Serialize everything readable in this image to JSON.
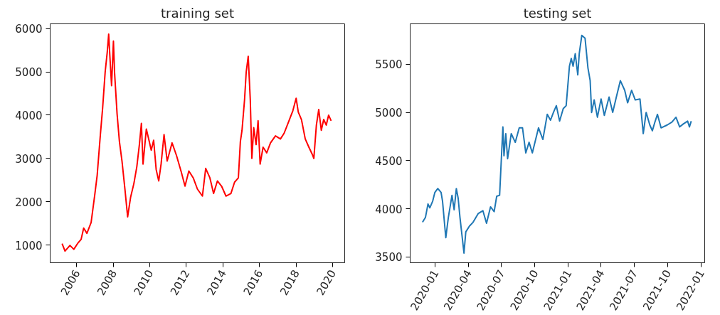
{
  "chart_data": [
    {
      "type": "line",
      "title": "training set",
      "xlim": [
        "2004-07-18",
        "2020-09-01"
      ],
      "ylim": [
        590,
        6110
      ],
      "xticks": [
        "2006",
        "2008",
        "2010",
        "2012",
        "2014",
        "2016",
        "2018",
        "2020"
      ],
      "yticks": [
        1000,
        2000,
        3000,
        4000,
        5000,
        6000
      ],
      "grid": false,
      "series": [
        {
          "color": "#ff0000",
          "x": [
            "2005-03-14",
            "2005-05-11",
            "2005-08-18",
            "2005-11-03",
            "2006-01-15",
            "2006-03-29",
            "2006-05-19",
            "2006-07-23",
            "2006-10-15",
            "2006-12-27",
            "2007-02-13",
            "2007-04-16",
            "2007-06-02",
            "2007-07-23",
            "2007-09-02",
            "2007-10-01",
            "2007-10-30",
            "2007-11-28",
            "2008-01-04",
            "2008-01-26",
            "2008-03-17",
            "2008-05-03",
            "2008-06-23",
            "2008-08-21",
            "2008-10-14",
            "2008-12-12",
            "2009-02-16",
            "2009-04-16",
            "2009-06-06",
            "2009-07-16",
            "2009-08-18",
            "2009-10-23",
            "2009-12-09",
            "2010-01-29",
            "2010-03-18",
            "2010-05-08",
            "2010-06-28",
            "2010-08-14",
            "2010-10-12",
            "2010-12-13",
            "2011-03-21",
            "2011-06-17",
            "2011-09-23",
            "2011-12-05",
            "2012-02-20",
            "2012-05-18",
            "2012-08-10",
            "2012-11-17",
            "2013-01-22",
            "2013-04-16",
            "2013-06-28",
            "2013-09-13",
            "2013-12-05",
            "2014-03-03",
            "2014-06-10",
            "2014-08-22",
            "2014-11-06",
            "2014-12-16",
            "2015-01-18",
            "2015-03-10",
            "2015-04-12",
            "2015-05-22",
            "2015-07-02",
            "2015-08-03",
            "2015-09-09",
            "2015-10-26",
            "2015-12-05",
            "2016-01-15",
            "2016-03-14",
            "2016-05-26",
            "2016-08-10",
            "2016-11-17",
            "2017-02-24",
            "2017-05-08",
            "2017-08-14",
            "2017-10-30",
            "2018-01-04",
            "2018-02-16",
            "2018-04-20",
            "2018-07-05",
            "2018-09-16",
            "2018-12-02",
            "2018-12-24",
            "2019-02-13",
            "2019-04-01",
            "2019-05-22",
            "2019-07-09",
            "2019-08-29",
            "2019-10-15",
            "2019-12-05"
          ],
          "values": [
            1030,
            860,
            990,
            900,
            1030,
            1130,
            1390,
            1270,
            1520,
            2160,
            2610,
            3520,
            4160,
            5000,
            5450,
            5870,
            5260,
            4680,
            5710,
            5000,
            4030,
            3390,
            2940,
            2290,
            1650,
            2100,
            2420,
            2810,
            3320,
            3810,
            2870,
            3680,
            3450,
            3190,
            3420,
            2740,
            2480,
            2870,
            3550,
            2940,
            3360,
            3070,
            2680,
            2360,
            2710,
            2550,
            2290,
            2130,
            2770,
            2550,
            2190,
            2480,
            2360,
            2130,
            2190,
            2450,
            2550,
            3390,
            3650,
            4360,
            5000,
            5360,
            4360,
            3000,
            3710,
            3320,
            3870,
            2870,
            3260,
            3130,
            3360,
            3520,
            3450,
            3580,
            3870,
            4100,
            4390,
            4070,
            3900,
            3450,
            3260,
            3070,
            3000,
            3770,
            4130,
            3650,
            3900,
            3770,
            4000,
            3870
          ]
        }
      ]
    },
    {
      "type": "line",
      "title": "testing set",
      "xlim": [
        "2019-10-24",
        "2022-01-11"
      ],
      "ylim": [
        3440,
        5920
      ],
      "xticks": [
        "2020-01",
        "2020-04",
        "2020-07",
        "2020-10",
        "2021-01",
        "2021-04",
        "2021-07",
        "2021-10",
        "2022-01"
      ],
      "yticks": [
        3500,
        4000,
        4500,
        5000,
        5500
      ],
      "grid": false,
      "series": [
        {
          "color": "#1f77b4",
          "x": [
            "2019-11-27",
            "2019-12-05",
            "2019-12-12",
            "2019-12-17",
            "2019-12-25",
            "2019-12-31",
            "2020-01-08",
            "2020-01-17",
            "2020-01-21",
            "2020-01-30",
            "2020-02-06",
            "2020-02-16",
            "2020-02-22",
            "2020-02-28",
            "2020-03-04",
            "2020-03-09",
            "2020-03-20",
            "2020-03-25",
            "2020-04-04",
            "2020-04-14",
            "2020-04-28",
            "2020-05-11",
            "2020-05-21",
            "2020-06-01",
            "2020-06-11",
            "2020-06-18",
            "2020-06-26",
            "2020-07-05",
            "2020-07-08",
            "2020-07-13",
            "2020-07-18",
            "2020-07-28",
            "2020-08-08",
            "2020-08-19",
            "2020-08-28",
            "2020-09-06",
            "2020-09-15",
            "2020-09-24",
            "2020-10-11",
            "2020-10-23",
            "2020-11-04",
            "2020-11-13",
            "2020-11-21",
            "2020-11-29",
            "2020-12-08",
            "2020-12-18",
            "2020-12-26",
            "2021-01-04",
            "2021-01-09",
            "2021-01-14",
            "2021-01-20",
            "2021-01-27",
            "2021-01-31",
            "2021-02-07",
            "2021-02-16",
            "2021-02-24",
            "2021-03-02",
            "2021-03-06",
            "2021-03-13",
            "2021-03-22",
            "2021-04-01",
            "2021-04-10",
            "2021-04-23",
            "2021-05-03",
            "2021-05-13",
            "2021-05-24",
            "2021-06-05",
            "2021-06-13",
            "2021-06-24",
            "2021-07-04",
            "2021-07-17",
            "2021-07-26",
            "2021-08-03",
            "2021-08-13",
            "2021-08-20",
            "2021-08-27",
            "2021-09-03",
            "2021-09-13",
            "2021-09-30",
            "2021-10-13",
            "2021-10-24",
            "2021-11-03",
            "2021-11-13",
            "2021-11-25",
            "2021-11-30",
            "2021-12-05"
          ],
          "values": [
            3860,
            3910,
            4050,
            4010,
            4080,
            4170,
            4210,
            4170,
            4080,
            3700,
            3910,
            4140,
            3990,
            4210,
            4110,
            3910,
            3540,
            3760,
            3820,
            3860,
            3950,
            3980,
            3850,
            4020,
            3970,
            4130,
            4140,
            4850,
            4550,
            4780,
            4520,
            4780,
            4690,
            4840,
            4840,
            4580,
            4690,
            4580,
            4840,
            4720,
            4980,
            4920,
            5000,
            5070,
            4910,
            5040,
            5070,
            5480,
            5560,
            5480,
            5610,
            5390,
            5610,
            5800,
            5770,
            5460,
            5330,
            5000,
            5130,
            4950,
            5140,
            4970,
            5160,
            5000,
            5160,
            5330,
            5230,
            5100,
            5230,
            5130,
            5140,
            4780,
            5000,
            4870,
            4810,
            4900,
            4980,
            4840,
            4870,
            4900,
            4950,
            4850,
            4880,
            4910,
            4850,
            4910
          ]
        }
      ]
    }
  ]
}
